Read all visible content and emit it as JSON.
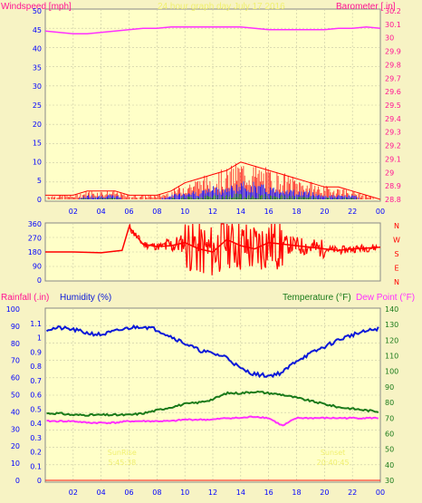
{
  "colors": {
    "wind": "#ff2020",
    "gust": "#ff0000",
    "wind_blue": "#1010ff",
    "wind_green": "#1a8a1a",
    "barometer": "#ff30ff",
    "direction": "#ff0000",
    "rain": "#ff1010",
    "humidity": "#0a18d8",
    "temperature": "#1a7a1a",
    "dewpoint": "#ff30ff",
    "sun": "#f0f070",
    "left_axis_pink": "#ff1493",
    "axis_blue": "#0000ff",
    "axis_green": "#1a7a1a"
  },
  "chart_data": [
    {
      "type": "line",
      "title": "24 hour graph day   July 17 2016",
      "ylabel": "Windspeed [mph]",
      "y2label": "Barometer [.in]",
      "ylim": [
        0,
        50
      ],
      "y2lim": [
        28.8,
        30.2
      ],
      "yticks": [
        "0",
        "5",
        "10",
        "15",
        "20",
        "25",
        "30",
        "35",
        "40",
        "45",
        "50"
      ],
      "y2ticks": [
        "28.8",
        "28.9",
        "29",
        "29.1",
        "29.2",
        "29.3",
        "29.4",
        "29.5",
        "29.6",
        "29.7",
        "29.8",
        "29.9",
        "30",
        "30.1",
        "30.2"
      ],
      "x_ticks": [
        "02",
        "04",
        "06",
        "08",
        "10",
        "12",
        "14",
        "16",
        "18",
        "20",
        "22",
        "00"
      ],
      "series": [
        {
          "kind": "barometer",
          "x": [
            0,
            1,
            2,
            3,
            4,
            5,
            6,
            7,
            8,
            9,
            10,
            11,
            12,
            13,
            14,
            15,
            16,
            17,
            18,
            19,
            20,
            21,
            22,
            23,
            24
          ],
          "values": [
            30.05,
            30.04,
            30.03,
            30.03,
            30.04,
            30.05,
            30.06,
            30.07,
            30.07,
            30.08,
            30.08,
            30.08,
            30.08,
            30.08,
            30.08,
            30.07,
            30.06,
            30.06,
            30.06,
            30.06,
            30.06,
            30.07,
            30.07,
            30.08,
            30.07
          ]
        },
        {
          "kind": "wind_gust",
          "x": [
            0,
            1,
            2,
            3,
            4,
            5,
            6,
            7,
            8,
            9,
            10,
            11,
            12,
            13,
            14,
            15,
            16,
            17,
            18,
            19,
            20,
            21,
            22,
            23,
            24
          ],
          "values": [
            1,
            1,
            1,
            2,
            2,
            2,
            1,
            1,
            1,
            2,
            4,
            5,
            6,
            7,
            9,
            8,
            7,
            6,
            5,
            4,
            3,
            3,
            2,
            1,
            0
          ]
        },
        {
          "kind": "wind_avg",
          "x": [
            0,
            1,
            2,
            3,
            4,
            5,
            6,
            7,
            8,
            9,
            10,
            11,
            12,
            13,
            14,
            15,
            16,
            17,
            18,
            19,
            20,
            21,
            22,
            23,
            24
          ],
          "values": [
            0,
            0,
            0,
            1,
            1,
            1,
            0,
            0,
            0,
            1,
            2,
            2,
            3,
            3,
            4,
            4,
            3,
            3,
            2,
            2,
            1,
            1,
            1,
            0,
            0
          ]
        }
      ]
    },
    {
      "type": "line",
      "yticks": [
        "360",
        "270",
        "180",
        "90",
        "0"
      ],
      "ylim": [
        0,
        360
      ],
      "direction_letters": [
        "N",
        "W",
        "S",
        "E",
        "N"
      ],
      "x_ticks": [
        "02",
        "04",
        "06",
        "08",
        "10",
        "12",
        "14",
        "16",
        "18",
        "20",
        "22",
        "00"
      ],
      "series": [
        {
          "kind": "wind_direction",
          "x": [
            0,
            2,
            4,
            5,
            5.5,
            6,
            7,
            8,
            9,
            10,
            11,
            12,
            13,
            14,
            15,
            16,
            17,
            18,
            19,
            20,
            21,
            22,
            23,
            24
          ],
          "values": [
            180,
            180,
            175,
            185,
            190,
            340,
            230,
            215,
            220,
            240,
            200,
            180,
            260,
            220,
            200,
            240,
            230,
            220,
            210,
            200,
            190,
            200,
            205,
            210
          ]
        }
      ]
    },
    {
      "type": "line",
      "ylabel": "Rainfall (.in)",
      "ylabel2": "Humidity (%)",
      "y2label": "Temperature (°F)",
      "y2label2": "Dew Point (°F)",
      "ylim": [
        0,
        100
      ],
      "rainlim": [
        0,
        1.2
      ],
      "templim": [
        30,
        140
      ],
      "humidity_ticks": [
        "0",
        "10",
        "20",
        "30",
        "40",
        "50",
        "60",
        "70",
        "80",
        "90",
        "100"
      ],
      "rain_ticks": [
        "0",
        "0.1",
        "0.2",
        "0.3",
        "0.4",
        "0.5",
        "0.6",
        "0.7",
        "0.8",
        "0.9",
        "1",
        "1.1"
      ],
      "temp_ticks": [
        "30",
        "40",
        "50",
        "60",
        "70",
        "80",
        "90",
        "100",
        "110",
        "120",
        "130",
        "140"
      ],
      "x_ticks": [
        "02",
        "04",
        "06",
        "08",
        "10",
        "12",
        "14",
        "16",
        "18",
        "20",
        "22",
        "00"
      ],
      "series": [
        {
          "kind": "humidity",
          "x": [
            0,
            1,
            2,
            3,
            4,
            5,
            6,
            7,
            8,
            9,
            10,
            11,
            12,
            13,
            14,
            15,
            16,
            17,
            18,
            19,
            20,
            21,
            22,
            23,
            24
          ],
          "values": [
            88,
            89,
            88,
            86,
            85,
            87,
            89,
            90,
            88,
            84,
            80,
            76,
            74,
            72,
            65,
            62,
            61,
            63,
            70,
            74,
            78,
            82,
            85,
            87,
            89
          ]
        },
        {
          "kind": "temperature",
          "x": [
            0,
            1,
            2,
            3,
            4,
            5,
            6,
            7,
            8,
            9,
            10,
            11,
            12,
            13,
            14,
            15,
            16,
            17,
            18,
            19,
            20,
            21,
            22,
            23,
            24
          ],
          "values": [
            73,
            73,
            72,
            72,
            72,
            72,
            72,
            73,
            75,
            77,
            79,
            80,
            82,
            86,
            86,
            87,
            86,
            85,
            83,
            81,
            79,
            77,
            76,
            75,
            74
          ]
        },
        {
          "kind": "dewpoint",
          "x": [
            0,
            1,
            2,
            3,
            4,
            5,
            6,
            7,
            8,
            9,
            10,
            11,
            12,
            13,
            14,
            15,
            16,
            17,
            18,
            19,
            20,
            21,
            22,
            23,
            24
          ],
          "values": [
            68,
            68,
            68,
            67,
            67,
            67,
            68,
            68,
            68,
            68,
            69,
            69,
            69,
            70,
            70,
            71,
            70,
            65,
            70,
            70,
            70,
            70,
            70,
            70,
            70
          ]
        },
        {
          "kind": "rainfall",
          "x": [
            0,
            24
          ],
          "values": [
            0,
            0
          ]
        }
      ],
      "annotations": [
        {
          "text": "SunRise",
          "hour": 5.5
        },
        {
          "text": "5:45:38",
          "hour": 5.5
        },
        {
          "text": "Sunset",
          "hour": 20.6
        },
        {
          "text": "20:40:45",
          "hour": 20.6
        }
      ]
    }
  ]
}
